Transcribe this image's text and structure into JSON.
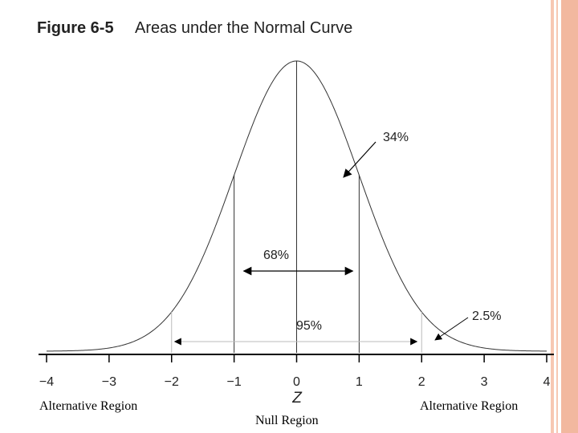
{
  "figure": {
    "number": "Figure 6-5",
    "title": "Areas under the Normal Curve"
  },
  "chart_data": {
    "type": "area",
    "distribution": "standard normal",
    "xlabel": "Z",
    "ylabel": "",
    "xlim": [
      -4,
      4
    ],
    "x_ticks": [
      "−4",
      "−3",
      "−2",
      "−1",
      "0",
      "1",
      "2",
      "3",
      "4"
    ],
    "reference_lines_z": [
      -2,
      -1,
      0,
      1,
      2
    ],
    "annotations": [
      {
        "label": "34%",
        "description": "area between Z = 0 and Z = 1"
      },
      {
        "label": "68%",
        "description": "area between Z = −1 and Z = 1"
      },
      {
        "label": "95%",
        "description": "area between Z = −2 and Z = 2"
      },
      {
        "label": "2.5%",
        "description": "area beyond Z = 2"
      }
    ]
  },
  "regions": {
    "left": "Alternative Region",
    "center": "Null Region",
    "right": "Alternative Region"
  },
  "colors": {
    "border_accent": "#f2b89f",
    "curve": "#333333"
  }
}
